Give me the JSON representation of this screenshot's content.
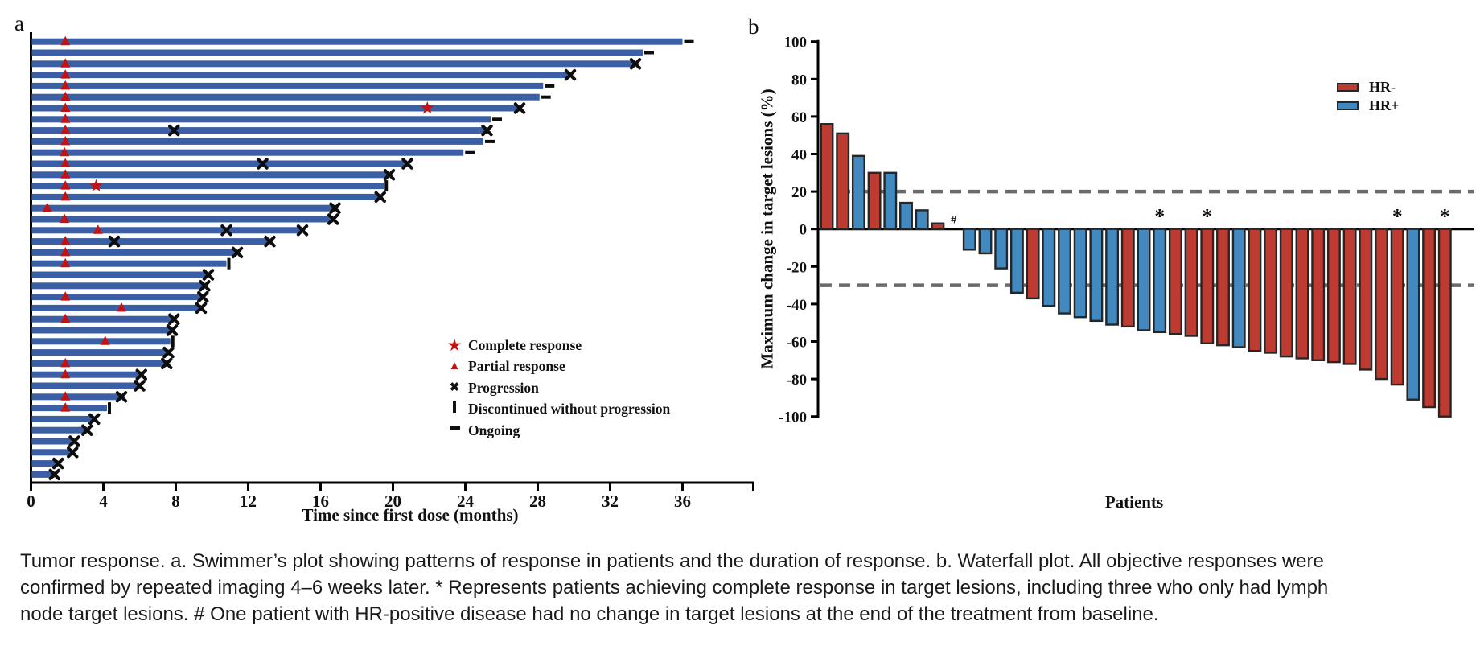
{
  "figure": {
    "panel_a_letter": "a",
    "panel_b_letter": "b"
  },
  "caption": {
    "line1": "Tumor response. a. Swimmer’s plot showing patterns of response in patients and the duration of response. b. Waterfall plot. All objective responses were",
    "line2": "confirmed by repeated imaging 4–6 weeks later. * Represents patients achieving complete response in target lesions, including three who only had lymph",
    "line3": "node target lesions. # One patient with HR-positive disease had no change in target lesions at the end of the treatment from baseline."
  },
  "colors": {
    "swimmer_bar": "#3a5fa5",
    "marker_red": "#c31212",
    "marker_black": "#0d0d0d",
    "waterfall_red": "#be3b31",
    "waterfall_blue": "#4289c0",
    "bar_stroke": "#262626",
    "dash_gray": "#6a6a6a",
    "axis_black": "#000000"
  },
  "chart_data": [
    {
      "type": "swimmer",
      "panel": "a",
      "xlabel": "Time since first dose (months)",
      "xticks": [
        0,
        4,
        8,
        12,
        16,
        20,
        24,
        28,
        32,
        36
      ],
      "xlim": [
        0,
        40
      ],
      "legend": [
        {
          "marker": "star",
          "label": "Complete response"
        },
        {
          "marker": "triangle",
          "label": "Partial response"
        },
        {
          "marker": "x",
          "label": "Progression"
        },
        {
          "marker": "bar",
          "label": "Discontinued without progression"
        },
        {
          "marker": "dash",
          "label": "Ongoing"
        }
      ],
      "bars": [
        {
          "months": 36.0,
          "end": "ongoing",
          "partial_response_at": [
            1.9
          ]
        },
        {
          "months": 33.8,
          "end": "ongoing",
          "partial_response_at": []
        },
        {
          "months": 33.4,
          "end": "progression",
          "partial_response_at": [
            1.9
          ]
        },
        {
          "months": 29.8,
          "end": "progression",
          "partial_response_at": [
            1.9
          ]
        },
        {
          "months": 28.3,
          "end": "ongoing",
          "partial_response_at": [
            1.9
          ]
        },
        {
          "months": 28.1,
          "end": "ongoing",
          "partial_response_at": [
            1.9
          ]
        },
        {
          "months": 27.0,
          "end": "progression",
          "partial_response_at": [
            1.9
          ],
          "complete_response_at": [
            21.9
          ]
        },
        {
          "months": 25.4,
          "end": "ongoing",
          "partial_response_at": [
            1.9
          ]
        },
        {
          "months": 25.2,
          "end": "progression",
          "partial_response_at": [
            1.9
          ],
          "progression_at": [
            7.9
          ]
        },
        {
          "months": 25.0,
          "end": "ongoing",
          "partial_response_at": [
            1.9
          ]
        },
        {
          "months": 23.9,
          "end": "ongoing",
          "partial_response_at": [
            1.85
          ]
        },
        {
          "months": 20.8,
          "end": "progression",
          "partial_response_at": [
            1.9
          ],
          "progression_at": [
            12.8
          ]
        },
        {
          "months": 19.8,
          "end": "progression",
          "partial_response_at": [
            1.9
          ]
        },
        {
          "months": 19.5,
          "end": "discontinued",
          "partial_response_at": [
            1.9
          ],
          "complete_response_at": [
            3.6
          ]
        },
        {
          "months": 19.3,
          "end": "progression",
          "partial_response_at": [
            1.9
          ]
        },
        {
          "months": 16.8,
          "end": "progression",
          "partial_response_at": [
            0.9
          ]
        },
        {
          "months": 16.7,
          "end": "progression",
          "partial_response_at": [
            1.85
          ]
        },
        {
          "months": 15.0,
          "end": "progression",
          "partial_response_at": [
            3.7
          ],
          "progression_at": [
            10.8
          ]
        },
        {
          "months": 13.2,
          "end": "progression",
          "partial_response_at": [
            1.9
          ],
          "progression_at": [
            4.6
          ]
        },
        {
          "months": 11.4,
          "end": "progression",
          "partial_response_at": [
            1.9
          ]
        },
        {
          "months": 10.8,
          "end": "discontinued",
          "partial_response_at": [
            1.9
          ]
        },
        {
          "months": 9.8,
          "end": "progression",
          "partial_response_at": []
        },
        {
          "months": 9.6,
          "end": "progression",
          "partial_response_at": []
        },
        {
          "months": 9.5,
          "end": "progression",
          "partial_response_at": [
            1.9
          ]
        },
        {
          "months": 9.4,
          "end": "progression",
          "partial_response_at": [
            5.0
          ]
        },
        {
          "months": 7.9,
          "end": "progression",
          "partial_response_at": [
            1.9
          ]
        },
        {
          "months": 7.8,
          "end": "progression",
          "partial_response_at": []
        },
        {
          "months": 7.7,
          "end": "discontinued",
          "partial_response_at": [
            4.1
          ]
        },
        {
          "months": 7.6,
          "end": "progression",
          "partial_response_at": []
        },
        {
          "months": 7.5,
          "end": "progression",
          "partial_response_at": [
            1.9
          ]
        },
        {
          "months": 6.1,
          "end": "progression",
          "partial_response_at": [
            1.9
          ]
        },
        {
          "months": 6.0,
          "end": "progression",
          "partial_response_at": []
        },
        {
          "months": 5.0,
          "end": "progression",
          "partial_response_at": [
            1.9
          ]
        },
        {
          "months": 4.2,
          "end": "discontinued",
          "partial_response_at": [
            1.9
          ]
        },
        {
          "months": 3.5,
          "end": "progression",
          "partial_response_at": []
        },
        {
          "months": 3.1,
          "end": "progression",
          "partial_response_at": []
        },
        {
          "months": 2.4,
          "end": "progression",
          "partial_response_at": []
        },
        {
          "months": 2.3,
          "end": "progression",
          "partial_response_at": []
        },
        {
          "months": 1.5,
          "end": "progression",
          "partial_response_at": []
        },
        {
          "months": 1.3,
          "end": "progression",
          "partial_response_at": []
        }
      ]
    },
    {
      "type": "waterfall",
      "panel": "b",
      "ylabel": "Maximum change in target lesions (%)",
      "xlabel": "Patients",
      "yticks": [
        100,
        80,
        60,
        40,
        20,
        0,
        -20,
        -40,
        -60,
        -80,
        -100
      ],
      "ylim": [
        -100,
        100
      ],
      "reference_lines": [
        20,
        -30
      ],
      "legend": [
        {
          "label": "HR-",
          "group": "HR-"
        },
        {
          "label": "HR+",
          "group": "HR+"
        }
      ],
      "annotations": {
        "star_symbol": "*",
        "hash_symbol": "#"
      },
      "bars": [
        {
          "value": 56,
          "group": "HR-"
        },
        {
          "value": 51,
          "group": "HR-"
        },
        {
          "value": 39,
          "group": "HR+"
        },
        {
          "value": 30,
          "group": "HR-"
        },
        {
          "value": 30,
          "group": "HR+"
        },
        {
          "value": 14,
          "group": "HR+"
        },
        {
          "value": 10,
          "group": "HR+"
        },
        {
          "value": 3,
          "group": "HR-"
        },
        {
          "value": 0,
          "group": "HR+",
          "flag": "hash"
        },
        {
          "value": -11,
          "group": "HR+"
        },
        {
          "value": -13,
          "group": "HR+"
        },
        {
          "value": -21,
          "group": "HR+"
        },
        {
          "value": -34,
          "group": "HR+"
        },
        {
          "value": -37,
          "group": "HR-"
        },
        {
          "value": -41,
          "group": "HR+"
        },
        {
          "value": -45,
          "group": "HR+"
        },
        {
          "value": -47,
          "group": "HR+"
        },
        {
          "value": -49,
          "group": "HR+"
        },
        {
          "value": -51,
          "group": "HR+"
        },
        {
          "value": -52,
          "group": "HR-"
        },
        {
          "value": -54,
          "group": "HR+"
        },
        {
          "value": -55,
          "group": "HR+",
          "flag": "star"
        },
        {
          "value": -56,
          "group": "HR-"
        },
        {
          "value": -57,
          "group": "HR-"
        },
        {
          "value": -61,
          "group": "HR-",
          "flag": "star"
        },
        {
          "value": -62,
          "group": "HR-"
        },
        {
          "value": -63,
          "group": "HR+"
        },
        {
          "value": -65,
          "group": "HR-"
        },
        {
          "value": -66,
          "group": "HR-"
        },
        {
          "value": -68,
          "group": "HR-"
        },
        {
          "value": -69,
          "group": "HR-"
        },
        {
          "value": -70,
          "group": "HR-"
        },
        {
          "value": -71,
          "group": "HR-"
        },
        {
          "value": -72,
          "group": "HR-"
        },
        {
          "value": -75,
          "group": "HR-"
        },
        {
          "value": -80,
          "group": "HR-"
        },
        {
          "value": -83,
          "group": "HR-",
          "flag": "star"
        },
        {
          "value": -91,
          "group": "HR+"
        },
        {
          "value": -95,
          "group": "HR-"
        },
        {
          "value": -100,
          "group": "HR-",
          "flag": "star"
        }
      ]
    }
  ]
}
